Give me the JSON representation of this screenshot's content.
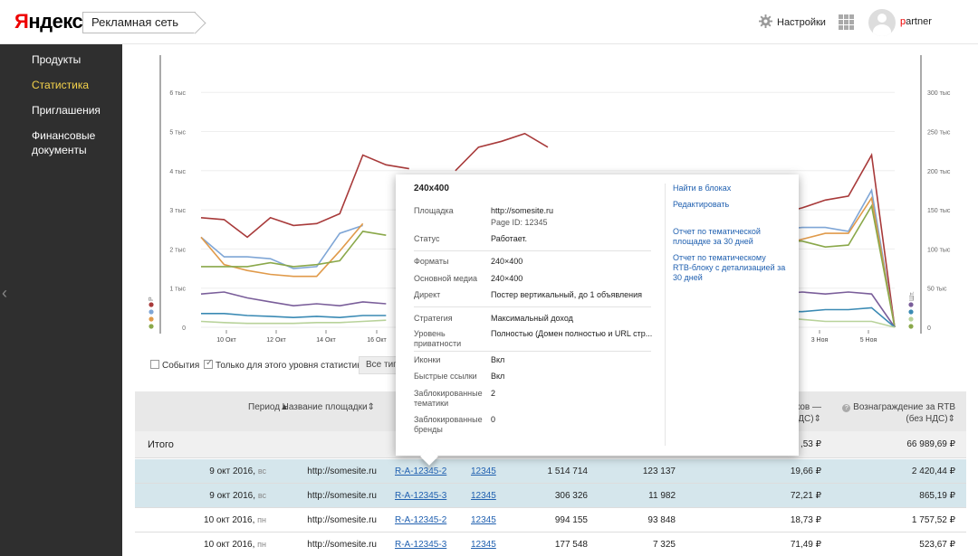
{
  "header": {
    "logo_first": "Я",
    "logo_rest": "ндекс",
    "service": "Рекламная сеть",
    "settings": "Настройки",
    "user_first": "p",
    "user_rest": "artner",
    "icons": [
      "gear-icon",
      "apps-grid-icon",
      "avatar-icon"
    ]
  },
  "sidebar": {
    "items": [
      {
        "label": "Продукты",
        "active": false
      },
      {
        "label": "Статистика",
        "active": true
      },
      {
        "label": "Приглашения",
        "active": false
      },
      {
        "label": "Финансовые документы",
        "active": false
      }
    ],
    "collapse": "‹"
  },
  "chart_data": {
    "type": "line",
    "x_labels": [
      "10 Окт",
      "12 Окт",
      "14 Окт",
      "16 Окт",
      "3 Ноя",
      "5 Ноя"
    ],
    "y_left_ticks": [
      "0",
      "1 тыс",
      "2 тыс",
      "3 тыс",
      "4 тыс",
      "5 тыс",
      "6 тыс"
    ],
    "y_right_ticks": [
      "0",
      "50 тыс",
      "100 тыс",
      "150 тыс",
      "200 тыс",
      "250 тыс",
      "300 тыс"
    ],
    "left_axis_unit": "Р",
    "right_axis_unit": "Шт.",
    "series": [
      {
        "color": "#a83a3a",
        "y": [
          2.8,
          2.75,
          2.3,
          2.8,
          2.6,
          2.65,
          2.9,
          4.4,
          4.15,
          4.05,
          null,
          4.0,
          4.6,
          4.75,
          4.95,
          4.6,
          null,
          null,
          null,
          null,
          null,
          null,
          null,
          null,
          null,
          2.9,
          3.05,
          3.25,
          3.35,
          4.4,
          0.0
        ]
      },
      {
        "color": "#7fa6d6",
        "y": [
          2.3,
          1.8,
          1.8,
          1.75,
          1.5,
          1.55,
          2.4,
          2.6,
          null,
          null,
          null,
          null,
          null,
          null,
          null,
          null,
          null,
          null,
          null,
          null,
          null,
          null,
          null,
          null,
          null,
          2.5,
          2.55,
          2.55,
          2.45,
          3.5,
          0.0
        ]
      },
      {
        "color": "#e09a4a",
        "y": [
          2.3,
          1.6,
          1.45,
          1.35,
          1.3,
          1.3,
          1.95,
          2.65,
          null,
          null,
          null,
          null,
          null,
          null,
          null,
          null,
          null,
          null,
          null,
          null,
          null,
          null,
          null,
          null,
          null,
          2.1,
          2.25,
          2.4,
          2.4,
          3.3,
          0.0
        ]
      },
      {
        "color": "#8aa84a",
        "y": [
          1.55,
          1.55,
          1.55,
          1.65,
          1.55,
          1.6,
          1.7,
          2.45,
          2.35,
          null,
          null,
          null,
          null,
          null,
          null,
          null,
          null,
          null,
          null,
          null,
          null,
          null,
          null,
          null,
          null,
          2.2,
          2.2,
          2.05,
          2.1,
          3.1,
          0.0
        ]
      },
      {
        "color": "#7a5e9a",
        "y": [
          0.85,
          0.9,
          0.75,
          0.65,
          0.55,
          0.6,
          0.55,
          0.65,
          0.6,
          null,
          null,
          null,
          null,
          null,
          null,
          null,
          null,
          null,
          null,
          null,
          null,
          null,
          null,
          null,
          null,
          0.85,
          0.9,
          0.85,
          0.9,
          0.85,
          0.0
        ]
      },
      {
        "color": "#3a8ab4",
        "y": [
          0.35,
          0.35,
          0.3,
          0.28,
          0.25,
          0.28,
          0.25,
          0.3,
          0.3,
          null,
          null,
          null,
          null,
          null,
          null,
          null,
          null,
          null,
          null,
          null,
          null,
          null,
          null,
          null,
          null,
          0.4,
          0.4,
          0.45,
          0.45,
          0.5,
          0.0
        ]
      },
      {
        "color": "#b8d29a",
        "y": [
          0.15,
          0.12,
          0.1,
          0.1,
          0.1,
          0.12,
          0.12,
          0.15,
          0.18,
          null,
          null,
          null,
          null,
          null,
          null,
          null,
          null,
          null,
          null,
          null,
          null,
          null,
          null,
          null,
          null,
          0.25,
          0.2,
          0.15,
          0.15,
          0.15,
          0.0
        ]
      }
    ]
  },
  "filters": {
    "events": "События",
    "only_level": "Только для этого уровня статистики",
    "type_btn": "Все тип"
  },
  "table": {
    "headers": {
      "period": "Период",
      "site": "Название площадки",
      "shows_1": "ков —",
      "shows_2": "НДС)",
      "reward_1": "Вознаграждение за RTB",
      "reward_2": "(без НДС)"
    },
    "total": {
      "label": "Итого",
      "col8": ",53 ₽",
      "reward": "66 989,69 ₽"
    },
    "rows": [
      {
        "date": "9 окт 2016,",
        "dow": "вс",
        "site": "http://somesite.ru",
        "block": "R-A-12345-2",
        "page": "12345",
        "c1": "1 514 714",
        "c2": "123 137",
        "c3": "19,66 ₽",
        "reward": "2 420,44 ₽",
        "hl": true
      },
      {
        "date": "9 окт 2016,",
        "dow": "вс",
        "site": "http://somesite.ru",
        "block": "R-A-12345-3",
        "page": "12345",
        "c1": "306 326",
        "c2": "11 982",
        "c3": "72,21 ₽",
        "reward": "865,19 ₽",
        "hl": true
      },
      {
        "date": "10 окт 2016,",
        "dow": "пн",
        "site": "http://somesite.ru",
        "block": "R-A-12345-2",
        "page": "12345",
        "c1": "994 155",
        "c2": "93 848",
        "c3": "18,73 ₽",
        "reward": "1 757,52 ₽",
        "hl": false
      },
      {
        "date": "10 окт 2016,",
        "dow": "пн",
        "site": "http://somesite.ru",
        "block": "R-A-12345-3",
        "page": "12345",
        "c1": "177 548",
        "c2": "7 325",
        "c3": "71,49 ₽",
        "reward": "523,67 ₽",
        "hl": false
      }
    ]
  },
  "popup": {
    "title": "240x400",
    "fields": [
      {
        "label": "Площадка",
        "value": "http://somesite.ru",
        "value2": "Page ID: 12345",
        "link": true
      },
      {
        "label": "Статус",
        "value": "Работает."
      },
      {
        "label": "Форматы",
        "value": "240×400"
      },
      {
        "label": "Основной медиа",
        "value": "240×400"
      },
      {
        "label": "Директ",
        "value": "Постер вертикальный, до 1 объявления"
      },
      {
        "label": "Стратегия",
        "value": "Максимальный доход"
      },
      {
        "label": "Уровень приватности",
        "value": "Полностью (Домен полностью и URL стр..."
      },
      {
        "label": "Иконки",
        "value": "Вкл"
      },
      {
        "label": "Быстрые ссылки",
        "value": "Вкл"
      },
      {
        "label": "Заблокированные тематики",
        "value": "2"
      },
      {
        "label": "Заблокированные бренды",
        "value": "0"
      }
    ],
    "actions": [
      "Найти в блоках",
      "Редактировать",
      "Отчет по тематической площадке за 30 дней",
      "Отчет по тематическому RTB-блоку с детализацией за 30 дней"
    ]
  }
}
